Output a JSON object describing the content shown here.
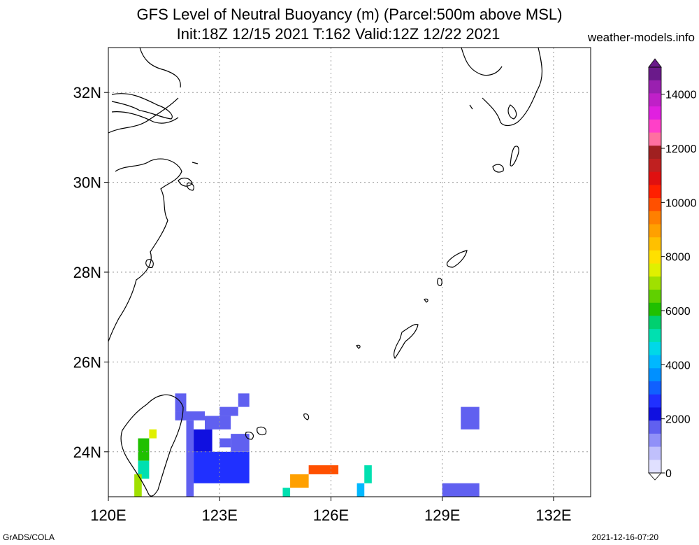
{
  "title_line1": "GFS Level of Neutral Buoyancy (m) (Parcel:500m above MSL)",
  "title_line2": "Init:18Z 12/15 2021 T:162 Valid:12Z 12/22 2021",
  "site": "weather-models.info",
  "footer_left": "GrADS/COLA",
  "footer_right": "2021-12-16-07:20",
  "map": {
    "lon_range": [
      120,
      133
    ],
    "lat_range": [
      23,
      33
    ],
    "lon_ticks": [
      {
        "value": 120,
        "label": "120E"
      },
      {
        "value": 123,
        "label": "123E"
      },
      {
        "value": 126,
        "label": "126E"
      },
      {
        "value": 129,
        "label": "129E"
      },
      {
        "value": 132,
        "label": "132E"
      }
    ],
    "lat_ticks": [
      {
        "value": 32,
        "label": "32N"
      },
      {
        "value": 30,
        "label": "30N"
      },
      {
        "value": 28,
        "label": "28N"
      },
      {
        "value": 26,
        "label": "26N"
      },
      {
        "value": 24,
        "label": "24N"
      }
    ]
  },
  "colorbar": {
    "labels": [
      "14000",
      "12000",
      "10000",
      "8000",
      "6000",
      "4000",
      "2000",
      "0"
    ],
    "colors": [
      "#6a1a8a",
      "#9a20b0",
      "#c020c8",
      "#e020e0",
      "#ff40c8",
      "#ff70a0",
      "#a02020",
      "#c02020",
      "#e01010",
      "#ff2000",
      "#ff5000",
      "#ff8000",
      "#ffa000",
      "#ffc000",
      "#ffe000",
      "#e0f000",
      "#a0e000",
      "#60d000",
      "#20c000",
      "#00d070",
      "#00e0b0",
      "#00d8e8",
      "#00b8ff",
      "#0090ff",
      "#1060ff",
      "#2030ff",
      "#1010e0",
      "#6060f0",
      "#9090f8",
      "#c0c0fc",
      "#e0e0ff"
    ]
  },
  "cells": [
    {
      "lon": 121.8,
      "lat": 24.9,
      "lon2": 122.1,
      "lat2": 25.3,
      "value": 1500
    },
    {
      "lon": 121.8,
      "lat": 24.7,
      "lon2": 122.6,
      "lat2": 24.9,
      "value": 1500
    },
    {
      "lon": 122.6,
      "lat": 24.5,
      "lon2": 123.3,
      "lat2": 24.8,
      "value": 1500
    },
    {
      "lon": 123.0,
      "lat": 24.8,
      "lon2": 123.5,
      "lat2": 25.0,
      "value": 1500
    },
    {
      "lon": 123.5,
      "lat": 25.0,
      "lon2": 123.8,
      "lat2": 25.3,
      "value": 1500
    },
    {
      "lon": 122.1,
      "lat": 23.0,
      "lon2": 122.3,
      "lat2": 24.7,
      "value": 1500
    },
    {
      "lon": 122.3,
      "lat": 24.0,
      "lon2": 122.8,
      "lat2": 24.5,
      "value": 1800
    },
    {
      "lon": 122.3,
      "lat": 23.3,
      "lon2": 123.8,
      "lat2": 24.0,
      "value": 2600
    },
    {
      "lon": 123.3,
      "lat": 24.0,
      "lon2": 123.8,
      "lat2": 24.4,
      "value": 1700
    },
    {
      "lon": 123.0,
      "lat": 24.1,
      "lon2": 123.3,
      "lat2": 24.3,
      "value": 1500
    },
    {
      "lon": 121.1,
      "lat": 24.3,
      "lon2": 121.3,
      "lat2": 24.5,
      "value": 7500
    },
    {
      "lon": 120.8,
      "lat": 23.8,
      "lon2": 121.1,
      "lat2": 24.3,
      "value": 6200
    },
    {
      "lon": 120.8,
      "lat": 23.4,
      "lon2": 121.1,
      "lat2": 23.8,
      "value": 5200
    },
    {
      "lon": 120.7,
      "lat": 23.0,
      "lon2": 120.9,
      "lat2": 23.5,
      "value": 7000
    },
    {
      "lon": 125.4,
      "lat": 23.5,
      "lon2": 126.2,
      "lat2": 23.7,
      "value": 10000
    },
    {
      "lon": 124.9,
      "lat": 23.2,
      "lon2": 125.4,
      "lat2": 23.5,
      "value": 9000
    },
    {
      "lon": 124.7,
      "lat": 23.0,
      "lon2": 124.9,
      "lat2": 23.2,
      "value": 5000
    },
    {
      "lon": 126.9,
      "lat": 23.3,
      "lon2": 127.1,
      "lat2": 23.7,
      "value": 5000
    },
    {
      "lon": 126.7,
      "lat": 23.0,
      "lon2": 126.9,
      "lat2": 23.3,
      "value": 4200
    },
    {
      "lon": 129.5,
      "lat": 24.5,
      "lon2": 130.0,
      "lat2": 25.0,
      "value": 1600
    },
    {
      "lon": 129.0,
      "lat": 23.0,
      "lon2": 130.0,
      "lat2": 23.3,
      "value": 1500
    }
  ]
}
